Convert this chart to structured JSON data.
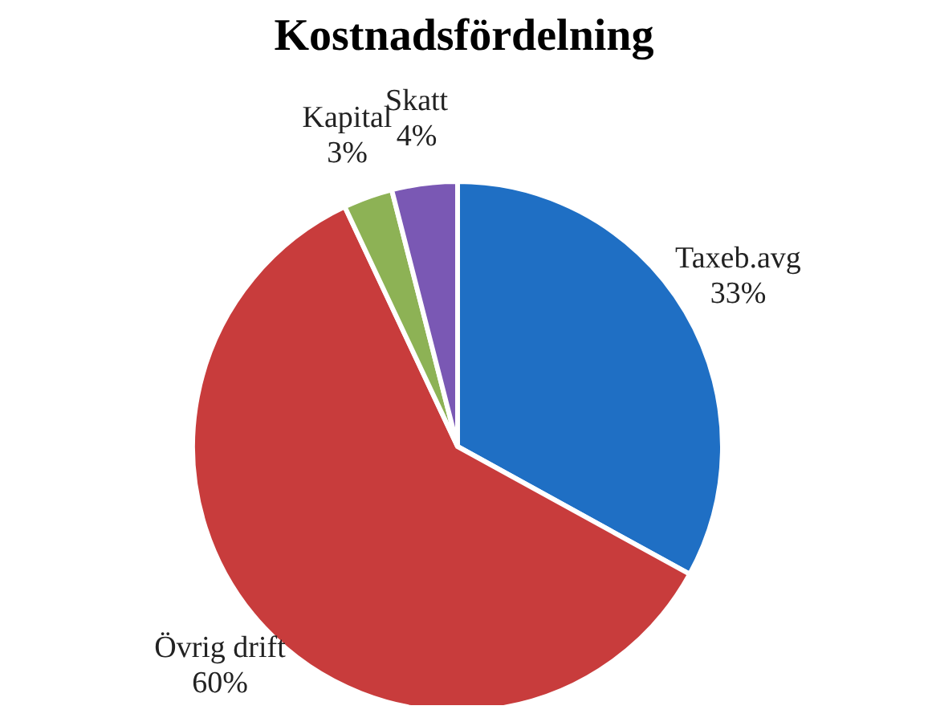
{
  "chart_data": {
    "type": "pie",
    "title": "Kostnadsfördelning",
    "categories": [
      "Taxeb.avg",
      "Övrig drift",
      "Kapital",
      "Skatt"
    ],
    "values": [
      33,
      60,
      3,
      4
    ],
    "value_labels": [
      "33%",
      "60%",
      "3%",
      "4%"
    ],
    "colors": [
      "#1f6fc4",
      "#c83c3c",
      "#8db255",
      "#7a58b4"
    ]
  }
}
